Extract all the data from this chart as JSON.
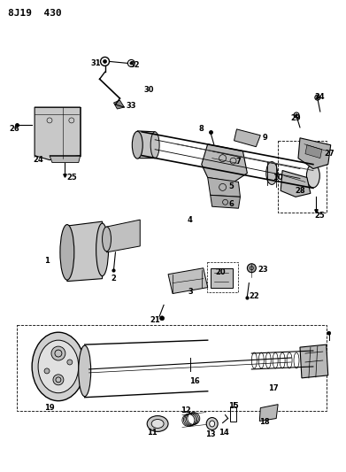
{
  "title": "8J19  430",
  "bg_color": "#ffffff",
  "line_color": "#000000",
  "title_fontsize": 8,
  "title_fontweight": "bold",
  "label_fontsize": 6,
  "label_fontweight": "bold"
}
